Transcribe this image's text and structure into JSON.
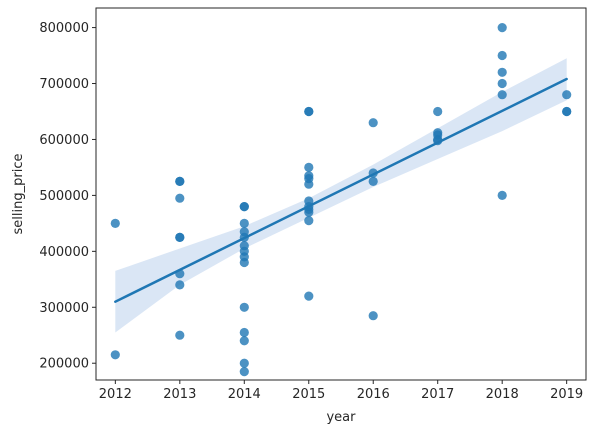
{
  "chart_data": {
    "type": "scatter",
    "title": "",
    "xlabel": "year",
    "ylabel": "selling_price",
    "xlim": [
      2011.7,
      2019.3
    ],
    "ylim": [
      170000,
      835000
    ],
    "x_ticks": [
      2012,
      2013,
      2014,
      2015,
      2016,
      2017,
      2018,
      2019
    ],
    "x_tick_labels": [
      "2012",
      "2013",
      "2014",
      "2015",
      "2016",
      "2017",
      "2018",
      "2019"
    ],
    "y_ticks": [
      200000,
      300000,
      400000,
      500000,
      600000,
      700000,
      800000
    ],
    "y_tick_labels": [
      "200000",
      "300000",
      "400000",
      "500000",
      "600000",
      "700000",
      "800000"
    ],
    "grid": false,
    "legend": false,
    "colors": {
      "points": "#1f77b4",
      "line": "#1f77b4",
      "band": "#aec7e8"
    },
    "points": [
      {
        "x": 2012,
        "y": 450000
      },
      {
        "x": 2012,
        "y": 215000
      },
      {
        "x": 2013,
        "y": 525000
      },
      {
        "x": 2013,
        "y": 525000
      },
      {
        "x": 2013,
        "y": 495000
      },
      {
        "x": 2013,
        "y": 425000
      },
      {
        "x": 2013,
        "y": 425000
      },
      {
        "x": 2013,
        "y": 360000
      },
      {
        "x": 2013,
        "y": 340000
      },
      {
        "x": 2013,
        "y": 250000
      },
      {
        "x": 2014,
        "y": 480000
      },
      {
        "x": 2014,
        "y": 480000
      },
      {
        "x": 2014,
        "y": 450000
      },
      {
        "x": 2014,
        "y": 435000
      },
      {
        "x": 2014,
        "y": 425000
      },
      {
        "x": 2014,
        "y": 410000
      },
      {
        "x": 2014,
        "y": 400000
      },
      {
        "x": 2014,
        "y": 390000
      },
      {
        "x": 2014,
        "y": 380000
      },
      {
        "x": 2014,
        "y": 300000
      },
      {
        "x": 2014,
        "y": 255000
      },
      {
        "x": 2014,
        "y": 240000
      },
      {
        "x": 2014,
        "y": 200000
      },
      {
        "x": 2014,
        "y": 185000
      },
      {
        "x": 2015,
        "y": 650000
      },
      {
        "x": 2015,
        "y": 650000
      },
      {
        "x": 2015,
        "y": 550000
      },
      {
        "x": 2015,
        "y": 535000
      },
      {
        "x": 2015,
        "y": 530000
      },
      {
        "x": 2015,
        "y": 520000
      },
      {
        "x": 2015,
        "y": 490000
      },
      {
        "x": 2015,
        "y": 480000
      },
      {
        "x": 2015,
        "y": 475000
      },
      {
        "x": 2015,
        "y": 470000
      },
      {
        "x": 2015,
        "y": 455000
      },
      {
        "x": 2015,
        "y": 320000
      },
      {
        "x": 2016,
        "y": 630000
      },
      {
        "x": 2016,
        "y": 540000
      },
      {
        "x": 2016,
        "y": 525000
      },
      {
        "x": 2016,
        "y": 285000
      },
      {
        "x": 2017,
        "y": 650000
      },
      {
        "x": 2017,
        "y": 612000
      },
      {
        "x": 2017,
        "y": 608000
      },
      {
        "x": 2017,
        "y": 600000
      },
      {
        "x": 2017,
        "y": 598000
      },
      {
        "x": 2018,
        "y": 800000
      },
      {
        "x": 2018,
        "y": 750000
      },
      {
        "x": 2018,
        "y": 720000
      },
      {
        "x": 2018,
        "y": 700000
      },
      {
        "x": 2018,
        "y": 680000
      },
      {
        "x": 2018,
        "y": 500000
      },
      {
        "x": 2019,
        "y": 680000
      },
      {
        "x": 2019,
        "y": 650000
      },
      {
        "x": 2019,
        "y": 650000
      }
    ],
    "regression_line": [
      {
        "x": 2012,
        "y": 310000
      },
      {
        "x": 2019,
        "y": 708000
      }
    ],
    "confidence_band": [
      {
        "x": 2012,
        "lower": 255000,
        "upper": 365000
      },
      {
        "x": 2013,
        "lower": 340000,
        "upper": 405000
      },
      {
        "x": 2014,
        "lower": 405000,
        "upper": 445000
      },
      {
        "x": 2015,
        "lower": 460000,
        "upper": 495000
      },
      {
        "x": 2016,
        "lower": 515000,
        "upper": 555000
      },
      {
        "x": 2017,
        "lower": 565000,
        "upper": 620000
      },
      {
        "x": 2018,
        "lower": 615000,
        "upper": 685000
      },
      {
        "x": 2019,
        "lower": 670000,
        "upper": 745000
      }
    ]
  }
}
